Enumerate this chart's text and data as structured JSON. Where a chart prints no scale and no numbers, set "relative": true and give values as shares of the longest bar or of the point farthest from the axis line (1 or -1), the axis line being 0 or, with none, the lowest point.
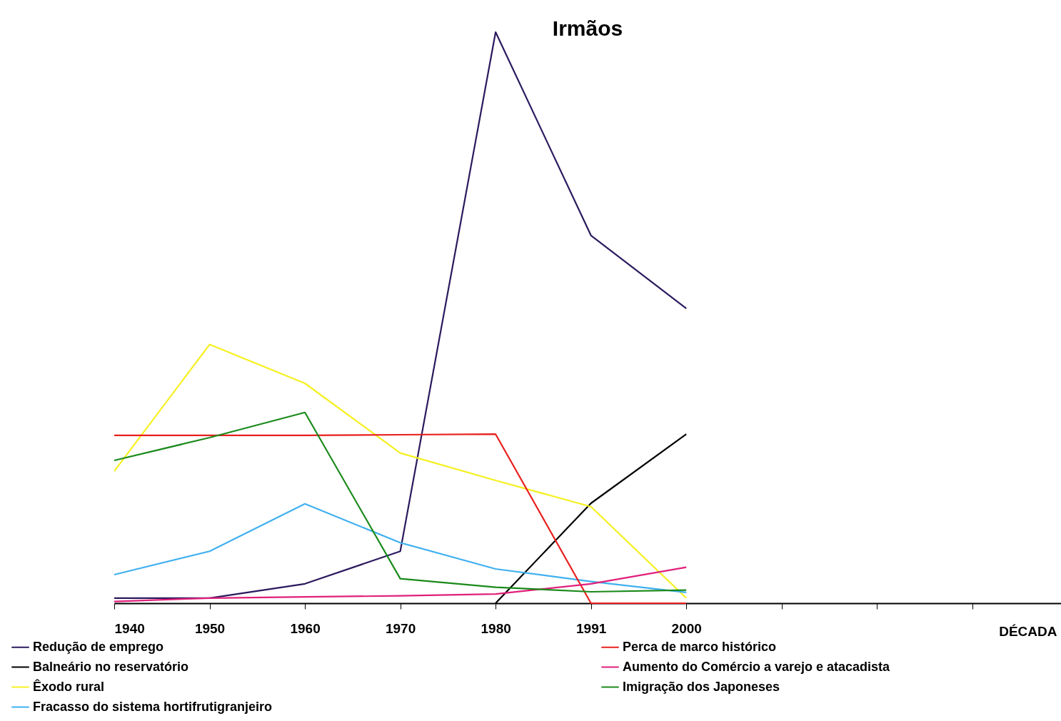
{
  "chart_data": {
    "type": "line",
    "title": "Irmãos",
    "xlabel": "DÉCADA",
    "relative": true,
    "categories": [
      "1940",
      "1950",
      "1960",
      "1970",
      "1980",
      "1991",
      "2000",
      null,
      null,
      null
    ],
    "legend": "bottom",
    "grid": false,
    "marker": "none",
    "line_style": "solid",
    "series": [
      {
        "name": "Redução de emprego",
        "color": "#2b1a5e",
        "values": [
          0.009,
          0.009,
          0.034,
          0.091,
          1,
          0.644,
          0.516,
          null,
          null,
          null
        ]
      },
      {
        "name": "Balneário no reservatório",
        "color": "#000000",
        "values": [
          null,
          null,
          null,
          null,
          0,
          0.175,
          0.296,
          null,
          null,
          null
        ]
      },
      {
        "name": "Êxodo rural",
        "color": "#f5f020",
        "values": [
          0.231,
          0.453,
          0.385,
          0.263,
          0.215,
          0.169,
          0.009,
          null,
          null,
          null
        ]
      },
      {
        "name": "Fracasso do sistema hortifrutigranjeiro",
        "color": "#3fb0f0",
        "values": [
          0.05,
          0.091,
          0.174,
          0.106,
          0.06,
          0.038,
          0.019,
          null,
          null,
          null
        ]
      },
      {
        "name": "Perca de marco histórico",
        "color": "#e8201e",
        "values": [
          0.294,
          0.294,
          0.294,
          0.295,
          0.296,
          0,
          0,
          null,
          null,
          null
        ]
      },
      {
        "name": "Aumento do Comércio a varejo e atacadista",
        "color": "#e0207a",
        "values": [
          0.003,
          0.009,
          0.011,
          0.013,
          0.016,
          0.034,
          0.063,
          null,
          null,
          null
        ]
      },
      {
        "name": "Imigração dos Japoneses",
        "color": "#1a8a1a",
        "values": [
          0.25,
          0.29,
          0.334,
          0.043,
          0.028,
          0.02,
          0.023,
          null,
          null,
          null
        ]
      }
    ]
  }
}
